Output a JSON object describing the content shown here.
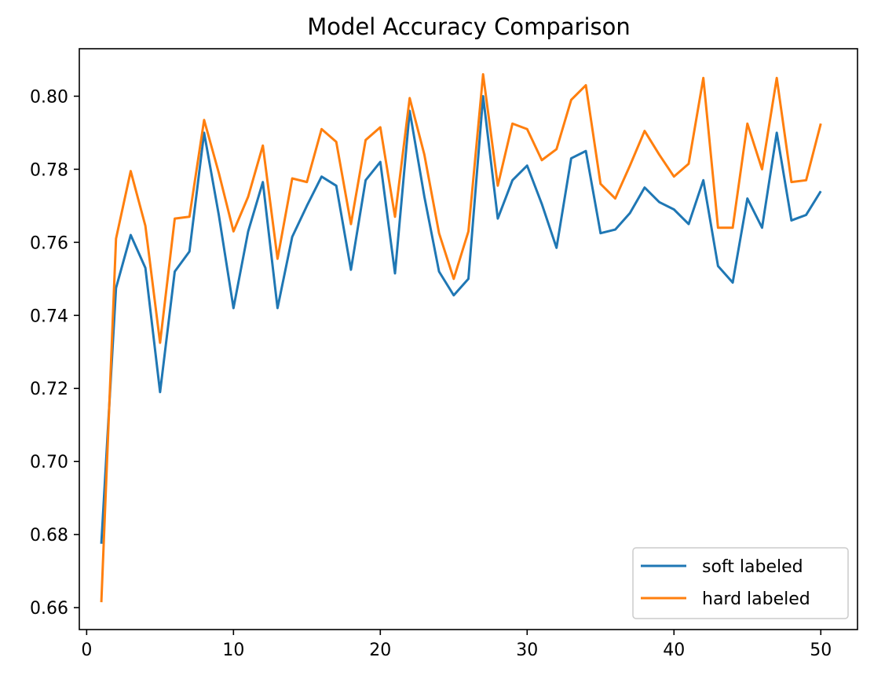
{
  "chart_data": {
    "type": "line",
    "title": "Model Accuracy Comparison",
    "xlabel": "",
    "ylabel": "",
    "xlim": [
      -0.5,
      52.5
    ],
    "ylim": [
      0.654,
      0.813
    ],
    "xticks": [
      0,
      10,
      20,
      30,
      40,
      50
    ],
    "yticks": [
      0.66,
      0.68,
      0.7,
      0.72,
      0.74,
      0.76,
      0.78,
      0.8
    ],
    "xtick_labels": [
      "0",
      "10",
      "20",
      "30",
      "40",
      "50"
    ],
    "ytick_labels": [
      "0.66",
      "0.68",
      "0.70",
      "0.72",
      "0.74",
      "0.76",
      "0.78",
      "0.80"
    ],
    "grid": false,
    "legend_position": "lower-right",
    "x": [
      1,
      2,
      3,
      4,
      5,
      6,
      7,
      8,
      9,
      10,
      11,
      12,
      13,
      14,
      15,
      16,
      17,
      18,
      19,
      20,
      21,
      22,
      23,
      24,
      25,
      26,
      27,
      28,
      29,
      30,
      31,
      32,
      33,
      34,
      35,
      36,
      37,
      38,
      39,
      40,
      41,
      42,
      43,
      44,
      45,
      46,
      47,
      48,
      49,
      50
    ],
    "series": [
      {
        "name": "soft labeled",
        "color": "#1f77b4",
        "values": [
          0.6775,
          0.7475,
          0.762,
          0.753,
          0.719,
          0.752,
          0.7575,
          0.79,
          0.7675,
          0.742,
          0.763,
          0.7765,
          0.742,
          0.7615,
          0.77,
          0.778,
          0.7755,
          0.7525,
          0.777,
          0.782,
          0.7515,
          0.796,
          0.7725,
          0.752,
          0.7455,
          0.75,
          0.8,
          0.7665,
          0.777,
          0.781,
          0.7705,
          0.7585,
          0.783,
          0.785,
          0.7625,
          0.7635,
          0.768,
          0.775,
          0.771,
          0.769,
          0.765,
          0.777,
          0.7535,
          0.749,
          0.772,
          0.764,
          0.79,
          0.766,
          0.7675,
          0.774
        ]
      },
      {
        "name": "hard labeled",
        "color": "#ff7f0e",
        "values": [
          0.6615,
          0.761,
          0.7795,
          0.7645,
          0.7325,
          0.7665,
          0.767,
          0.7935,
          0.779,
          0.763,
          0.7725,
          0.7865,
          0.7555,
          0.7775,
          0.7765,
          0.791,
          0.7875,
          0.765,
          0.788,
          0.7915,
          0.767,
          0.7995,
          0.784,
          0.7625,
          0.75,
          0.763,
          0.806,
          0.7755,
          0.7925,
          0.791,
          0.7825,
          0.7855,
          0.799,
          0.803,
          0.776,
          0.772,
          0.781,
          0.7905,
          0.784,
          0.778,
          0.7815,
          0.805,
          0.764,
          0.764,
          0.7925,
          0.78,
          0.805,
          0.7765,
          0.777,
          0.7925
        ]
      }
    ]
  }
}
